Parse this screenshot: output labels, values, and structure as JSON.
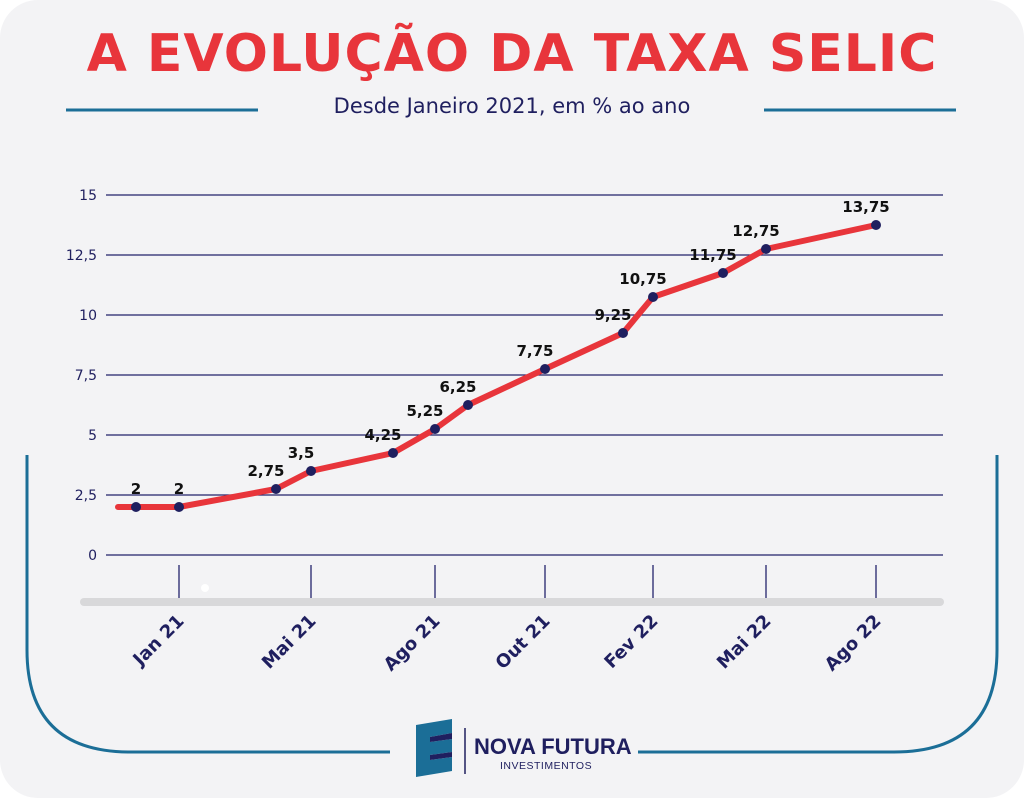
{
  "colors": {
    "title": "#e8353b",
    "navy": "#1f1f5f",
    "line": "#e8353b",
    "grid": "#23236b",
    "frame": "#1b6e97",
    "bar": "#d8d8da",
    "logo_blue": "#1b6e97"
  },
  "header": {
    "title": "A EVOLUÇÃO DA TAXA SELIC",
    "subtitle": "Desde Janeiro 2021, em % ao ano"
  },
  "logo": {
    "name": "NOVA FUTURA",
    "sub": "INVESTIMENTOS",
    "icon": "nova-futura-logo-icon"
  },
  "chart_data": {
    "type": "line",
    "title": "A EVOLUÇÃO DA TAXA SELIC",
    "subtitle": "Desde Janeiro 2021, em % ao ano",
    "xlabel": "",
    "ylabel": "",
    "ylim": [
      0,
      15
    ],
    "yticks": [
      0,
      2.5,
      5,
      7.5,
      10,
      12.5,
      15
    ],
    "ytick_labels": [
      "0",
      "2,5",
      "5",
      "7,5",
      "10",
      "12,5",
      "15"
    ],
    "x_tick_labels": [
      "Jan 21",
      "Mai 21",
      "Ago 21",
      "Out 21",
      "Fev 22",
      "Mai 22",
      "Ago 22"
    ],
    "grid": true,
    "series": [
      {
        "points": [
          {
            "x": "Dez 20",
            "y": 2,
            "label": "2"
          },
          {
            "x": "Jan 21",
            "y": 2,
            "label": "2"
          },
          {
            "x": "Mar 21",
            "y": 2.75,
            "label": "2,75"
          },
          {
            "x": "Mai 21",
            "y": 3.5,
            "label": "3,5"
          },
          {
            "x": "Jun 21",
            "y": 4.25,
            "label": "4,25"
          },
          {
            "x": "Ago 21",
            "y": 5.25,
            "label": "5,25"
          },
          {
            "x": "Set 21",
            "y": 6.25,
            "label": "6,25"
          },
          {
            "x": "Out 21",
            "y": 7.75,
            "label": "7,75"
          },
          {
            "x": "Dez 21",
            "y": 9.25,
            "label": "9,25"
          },
          {
            "x": "Fev 22",
            "y": 10.75,
            "label": "10,75"
          },
          {
            "x": "Mar 22",
            "y": 11.75,
            "label": "11,75"
          },
          {
            "x": "Mai 22",
            "y": 12.75,
            "label": "12,75"
          },
          {
            "x": "Ago 22",
            "y": 13.75,
            "label": "13,75"
          }
        ]
      }
    ]
  }
}
